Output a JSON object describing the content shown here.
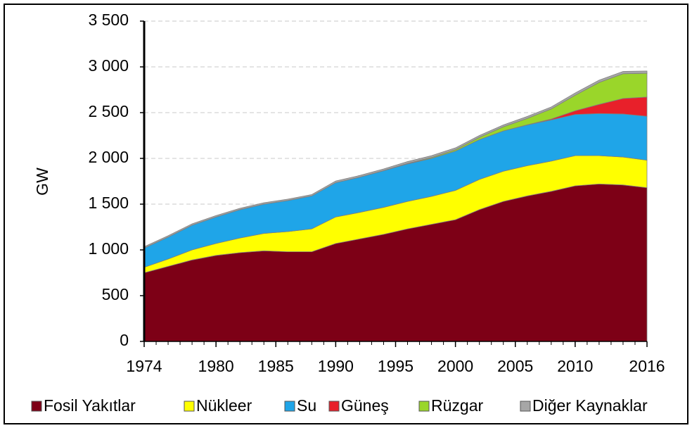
{
  "chart_data": {
    "type": "stacked_area",
    "y_label": "GW",
    "x": [
      1974,
      1976,
      1978,
      1980,
      1982,
      1984,
      1986,
      1988,
      1990,
      1992,
      1994,
      1996,
      1998,
      2000,
      2002,
      2004,
      2006,
      2008,
      2010,
      2012,
      2014,
      2016
    ],
    "xlim": [
      1974,
      2016
    ],
    "xticks": [
      1974,
      1980,
      1985,
      1990,
      1995,
      2000,
      2005,
      2010,
      2016
    ],
    "ylim": [
      0,
      3500
    ],
    "yticks": [
      0,
      500,
      {
        "value": 1000,
        "label": "1 000"
      },
      {
        "value": 1500,
        "label": "1 500"
      },
      {
        "value": 2000,
        "label": "2 000"
      },
      {
        "value": 2500,
        "label": "2 500"
      },
      {
        "value": 3000,
        "label": "3 000"
      },
      {
        "value": 3500,
        "label": "3 500"
      }
    ],
    "grid": true,
    "legend": "bottom",
    "series": [
      {
        "name": "Fosil Yakıtlar",
        "color": "#7d0016",
        "values": [
          750,
          820,
          890,
          940,
          970,
          990,
          980,
          980,
          1070,
          1120,
          1170,
          1230,
          1280,
          1330,
          1440,
          1530,
          1590,
          1640,
          1700,
          1720,
          1710,
          1680
        ]
      },
      {
        "name": "Nükleer",
        "color": "#ffff00",
        "values": [
          60,
          80,
          110,
          130,
          160,
          190,
          220,
          250,
          290,
          290,
          295,
          300,
          305,
          320,
          330,
          330,
          330,
          330,
          330,
          310,
          305,
          300
        ]
      },
      {
        "name": "Su",
        "color": "#1fa5e8",
        "values": [
          210,
          240,
          270,
          290,
          310,
          320,
          340,
          360,
          375,
          385,
          400,
          410,
          415,
          430,
          435,
          440,
          445,
          450,
          450,
          460,
          470,
          480
        ]
      },
      {
        "name": "Güneş",
        "color": "#e8202a",
        "values": [
          0,
          0,
          0,
          0,
          0,
          0,
          0,
          0,
          0,
          0,
          0,
          0,
          0,
          0,
          0,
          0,
          2,
          10,
          40,
          100,
          170,
          210
        ]
      },
      {
        "name": "Rüzgar",
        "color": "#9ad62a",
        "values": [
          0,
          0,
          0,
          0,
          0,
          0,
          0,
          0,
          0,
          0,
          2,
          5,
          10,
          15,
          25,
          45,
          70,
          110,
          170,
          240,
          270,
          260
        ]
      },
      {
        "name": "Diğer Kaynaklar",
        "color": "#a6a6a6",
        "values": [
          15,
          15,
          15,
          15,
          15,
          15,
          15,
          15,
          18,
          18,
          18,
          20,
          20,
          20,
          20,
          20,
          22,
          22,
          25,
          25,
          25,
          25
        ]
      }
    ]
  }
}
